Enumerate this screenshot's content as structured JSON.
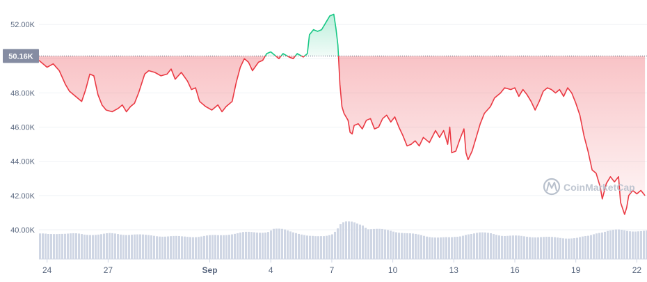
{
  "chart_data": {
    "type": "area",
    "y_ticks": [
      {
        "value": 40000,
        "label": "40.00K"
      },
      {
        "value": 42000,
        "label": "42.00K"
      },
      {
        "value": 44000,
        "label": "44.00K"
      },
      {
        "value": 46000,
        "label": "46.00K"
      },
      {
        "value": 48000,
        "label": "48.00K"
      },
      {
        "value": 50000,
        "label": "50.00K"
      },
      {
        "value": 52000,
        "label": "52.00K"
      }
    ],
    "x_ticks": [
      {
        "day": 24,
        "label": "24"
      },
      {
        "day": 27,
        "label": "27"
      },
      {
        "day": 32,
        "label": "Sep"
      },
      {
        "day": 35,
        "label": "4"
      },
      {
        "day": 38,
        "label": "7"
      },
      {
        "day": 41,
        "label": "10"
      },
      {
        "day": 44,
        "label": "13"
      },
      {
        "day": 47,
        "label": "16"
      },
      {
        "day": 50,
        "label": "19"
      },
      {
        "day": 53,
        "label": "22"
      }
    ],
    "x_unit": "day (Aug 1 = 1)",
    "xlim": [
      23.6,
      53.5
    ],
    "ylim": [
      40000,
      52700
    ],
    "baseline": {
      "value": 50160,
      "label": "50.16K"
    },
    "series": [
      {
        "colors": {
          "above": "#16c784",
          "below": "#ea3943"
        },
        "points": [
          [
            23.6,
            49900
          ],
          [
            24.0,
            49500
          ],
          [
            24.3,
            49700
          ],
          [
            24.6,
            49300
          ],
          [
            24.9,
            48500
          ],
          [
            25.1,
            48100
          ],
          [
            25.4,
            47800
          ],
          [
            25.7,
            47500
          ],
          [
            25.9,
            48200
          ],
          [
            26.1,
            49100
          ],
          [
            26.3,
            49000
          ],
          [
            26.5,
            47900
          ],
          [
            26.7,
            47300
          ],
          [
            26.9,
            47000
          ],
          [
            27.2,
            46900
          ],
          [
            27.5,
            47100
          ],
          [
            27.7,
            47300
          ],
          [
            27.9,
            46900
          ],
          [
            28.1,
            47200
          ],
          [
            28.3,
            47400
          ],
          [
            28.5,
            48000
          ],
          [
            28.8,
            49100
          ],
          [
            29.0,
            49300
          ],
          [
            29.3,
            49200
          ],
          [
            29.6,
            49000
          ],
          [
            29.9,
            49100
          ],
          [
            30.1,
            49400
          ],
          [
            30.3,
            48800
          ],
          [
            30.6,
            49200
          ],
          [
            30.9,
            48700
          ],
          [
            31.1,
            48200
          ],
          [
            31.3,
            48300
          ],
          [
            31.5,
            47500
          ],
          [
            31.8,
            47200
          ],
          [
            32.1,
            47000
          ],
          [
            32.4,
            47300
          ],
          [
            32.6,
            46900
          ],
          [
            32.8,
            47200
          ],
          [
            33.1,
            47500
          ],
          [
            33.3,
            48600
          ],
          [
            33.5,
            49500
          ],
          [
            33.7,
            50000
          ],
          [
            33.9,
            49800
          ],
          [
            34.1,
            49300
          ],
          [
            34.4,
            49800
          ],
          [
            34.6,
            49900
          ],
          [
            34.8,
            50300
          ],
          [
            35.0,
            50400
          ],
          [
            35.2,
            50200
          ],
          [
            35.4,
            50000
          ],
          [
            35.6,
            50300
          ],
          [
            35.9,
            50100
          ],
          [
            36.1,
            50000
          ],
          [
            36.3,
            50300
          ],
          [
            36.6,
            50100
          ],
          [
            36.8,
            50300
          ],
          [
            36.9,
            51400
          ],
          [
            37.1,
            51700
          ],
          [
            37.3,
            51600
          ],
          [
            37.5,
            51700
          ],
          [
            37.7,
            52100
          ],
          [
            37.9,
            52500
          ],
          [
            38.1,
            52600
          ],
          [
            38.2,
            51800
          ],
          [
            38.3,
            50800
          ],
          [
            38.4,
            48500
          ],
          [
            38.5,
            47200
          ],
          [
            38.6,
            46800
          ],
          [
            38.8,
            46400
          ],
          [
            38.9,
            45700
          ],
          [
            39.0,
            45600
          ],
          [
            39.1,
            46100
          ],
          [
            39.3,
            46200
          ],
          [
            39.5,
            45900
          ],
          [
            39.7,
            46400
          ],
          [
            39.9,
            46500
          ],
          [
            40.1,
            45900
          ],
          [
            40.3,
            46000
          ],
          [
            40.5,
            46500
          ],
          [
            40.7,
            46700
          ],
          [
            40.9,
            46300
          ],
          [
            41.1,
            46600
          ],
          [
            41.3,
            46000
          ],
          [
            41.5,
            45500
          ],
          [
            41.7,
            44900
          ],
          [
            41.9,
            45000
          ],
          [
            42.1,
            45200
          ],
          [
            42.3,
            44900
          ],
          [
            42.5,
            45400
          ],
          [
            42.8,
            45100
          ],
          [
            43.1,
            45800
          ],
          [
            43.3,
            45400
          ],
          [
            43.5,
            45800
          ],
          [
            43.7,
            45000
          ],
          [
            43.8,
            46000
          ],
          [
            43.9,
            44500
          ],
          [
            44.1,
            44600
          ],
          [
            44.3,
            45300
          ],
          [
            44.5,
            45900
          ],
          [
            44.6,
            44500
          ],
          [
            44.7,
            44100
          ],
          [
            44.9,
            44600
          ],
          [
            45.1,
            45400
          ],
          [
            45.3,
            46200
          ],
          [
            45.5,
            46800
          ],
          [
            45.8,
            47200
          ],
          [
            46.0,
            47700
          ],
          [
            46.3,
            48000
          ],
          [
            46.5,
            48300
          ],
          [
            46.8,
            48200
          ],
          [
            47.0,
            48300
          ],
          [
            47.2,
            47800
          ],
          [
            47.4,
            48200
          ],
          [
            47.6,
            47900
          ],
          [
            47.8,
            47500
          ],
          [
            48.0,
            47000
          ],
          [
            48.2,
            47500
          ],
          [
            48.4,
            48100
          ],
          [
            48.6,
            48300
          ],
          [
            48.8,
            48200
          ],
          [
            49.0,
            48000
          ],
          [
            49.2,
            48200
          ],
          [
            49.4,
            47800
          ],
          [
            49.6,
            48300
          ],
          [
            49.8,
            48000
          ],
          [
            50.0,
            47400
          ],
          [
            50.2,
            46700
          ],
          [
            50.4,
            45500
          ],
          [
            50.6,
            44600
          ],
          [
            50.8,
            43500
          ],
          [
            51.0,
            43300
          ],
          [
            51.2,
            42500
          ],
          [
            51.3,
            41800
          ],
          [
            51.5,
            42700
          ],
          [
            51.7,
            43100
          ],
          [
            51.9,
            42800
          ],
          [
            52.1,
            43100
          ],
          [
            52.2,
            41600
          ],
          [
            52.4,
            40900
          ],
          [
            52.5,
            41300
          ],
          [
            52.6,
            42000
          ],
          [
            52.8,
            42300
          ],
          [
            53.0,
            42100
          ],
          [
            53.2,
            42300
          ],
          [
            53.4,
            42000
          ]
        ]
      }
    ],
    "volume": [
      [
        23.6,
        0.71
      ],
      [
        24.0,
        0.7
      ],
      [
        24.6,
        0.74
      ],
      [
        25.2,
        0.72
      ],
      [
        25.8,
        0.69
      ],
      [
        26.4,
        0.71
      ],
      [
        27.0,
        0.72
      ],
      [
        27.6,
        0.7
      ],
      [
        28.2,
        0.71
      ],
      [
        28.8,
        0.67
      ],
      [
        29.4,
        0.66
      ],
      [
        30.0,
        0.65
      ],
      [
        30.6,
        0.63
      ],
      [
        31.2,
        0.64
      ],
      [
        31.8,
        0.66
      ],
      [
        32.4,
        0.67
      ],
      [
        33.0,
        0.72
      ],
      [
        33.6,
        0.75
      ],
      [
        34.2,
        0.76
      ],
      [
        34.8,
        0.78
      ],
      [
        35.1,
        0.85
      ],
      [
        35.6,
        0.83
      ],
      [
        36.2,
        0.76
      ],
      [
        36.8,
        0.65
      ],
      [
        37.2,
        0.63
      ],
      [
        37.6,
        0.66
      ],
      [
        38.0,
        0.73
      ],
      [
        38.2,
        0.85
      ],
      [
        38.4,
        1.0
      ],
      [
        38.6,
        1.04
      ],
      [
        39.0,
        1.04
      ],
      [
        39.5,
        0.98
      ],
      [
        39.7,
        0.87
      ],
      [
        40.2,
        0.84
      ],
      [
        40.8,
        0.81
      ],
      [
        41.4,
        0.76
      ],
      [
        42.0,
        0.7
      ],
      [
        42.6,
        0.65
      ],
      [
        43.2,
        0.62
      ],
      [
        43.8,
        0.6
      ],
      [
        44.2,
        0.64
      ],
      [
        44.6,
        0.72
      ],
      [
        45.2,
        0.74
      ],
      [
        45.8,
        0.73
      ],
      [
        46.4,
        0.67
      ],
      [
        47.0,
        0.65
      ],
      [
        47.6,
        0.64
      ],
      [
        48.2,
        0.63
      ],
      [
        48.8,
        0.61
      ],
      [
        49.4,
        0.6
      ],
      [
        50.0,
        0.6
      ],
      [
        50.6,
        0.65
      ],
      [
        51.0,
        0.75
      ],
      [
        51.5,
        0.81
      ],
      [
        52.0,
        0.82
      ],
      [
        52.5,
        0.8
      ],
      [
        53.0,
        0.81
      ],
      [
        53.5,
        0.8
      ]
    ],
    "grid": true,
    "watermark": "CoinMarketCap"
  }
}
